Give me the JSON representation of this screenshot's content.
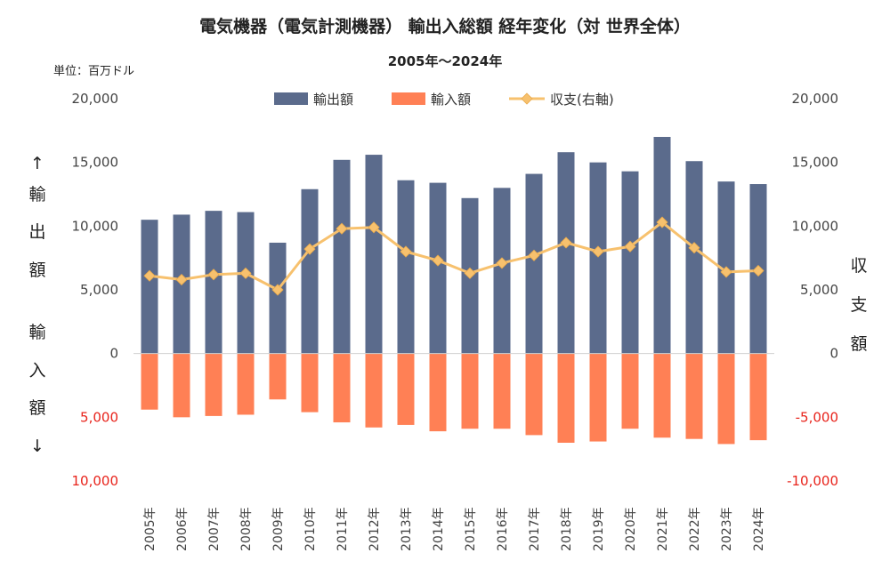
{
  "chart_data": {
    "type": "bar",
    "title": "電気機器（電気計測機器） 輸出入総額 経年変化（対 世界全体）",
    "subtitle": "2005年～2024年",
    "unit_label": "単位：百万ドル",
    "categories": [
      "2005年",
      "2006年",
      "2007年",
      "2008年",
      "2009年",
      "2010年",
      "2011年",
      "2012年",
      "2013年",
      "2014年",
      "2015年",
      "2016年",
      "2017年",
      "2018年",
      "2019年",
      "2020年",
      "2021年",
      "2022年",
      "2023年",
      "2024年"
    ],
    "series": [
      {
        "name": "輸出額",
        "type": "bar",
        "axis": "left",
        "color": "#5b6b8c",
        "values": [
          10500,
          10900,
          11200,
          11100,
          8700,
          12900,
          15200,
          15600,
          13600,
          13400,
          12200,
          13000,
          14100,
          15800,
          15000,
          14300,
          17000,
          15100,
          13500,
          13300
        ]
      },
      {
        "name": "輸入額",
        "type": "bar",
        "axis": "left",
        "color": "#ff8055",
        "values": [
          4400,
          5000,
          4900,
          4800,
          3600,
          4600,
          5400,
          5800,
          5600,
          6100,
          5900,
          5900,
          6400,
          7000,
          6900,
          5900,
          6600,
          6700,
          7100,
          6800
        ]
      },
      {
        "name": "収支(右軸)",
        "type": "line",
        "axis": "right",
        "color": "#f7c16e",
        "values": [
          6100,
          5800,
          6200,
          6300,
          5000,
          8200,
          9800,
          9900,
          8000,
          7300,
          6300,
          7100,
          7700,
          8700,
          8000,
          8400,
          10300,
          8300,
          6400,
          6500
        ]
      }
    ],
    "left_axis": {
      "ylim": [
        -10000,
        20000
      ],
      "ticks": [
        {
          "value": 20000,
          "label": "20,000"
        },
        {
          "value": 15000,
          "label": "15,000"
        },
        {
          "value": 10000,
          "label": "10,000"
        },
        {
          "value": 5000,
          "label": "5,000"
        },
        {
          "value": 0,
          "label": "0"
        },
        {
          "value": -5000,
          "label": "5,000"
        },
        {
          "value": -10000,
          "label": "10,000"
        }
      ],
      "label_top": [
        "↑",
        "輸",
        "出",
        "額"
      ],
      "label_bottom": [
        "輸",
        "入",
        "額",
        "↓"
      ]
    },
    "right_axis": {
      "ylim": [
        -10000,
        20000
      ],
      "ticks": [
        {
          "value": 20000,
          "label": "20,000"
        },
        {
          "value": 15000,
          "label": "15,000"
        },
        {
          "value": 10000,
          "label": "10,000"
        },
        {
          "value": 5000,
          "label": "5,000"
        },
        {
          "value": 0,
          "label": "0"
        },
        {
          "value": -5000,
          "label": "-5,000"
        },
        {
          "value": -10000,
          "label": "-10,000"
        }
      ],
      "label": [
        "収",
        "支",
        "額"
      ]
    },
    "negative_tick_color": "#e8231b",
    "grid": false,
    "legend_position": "top-center"
  }
}
